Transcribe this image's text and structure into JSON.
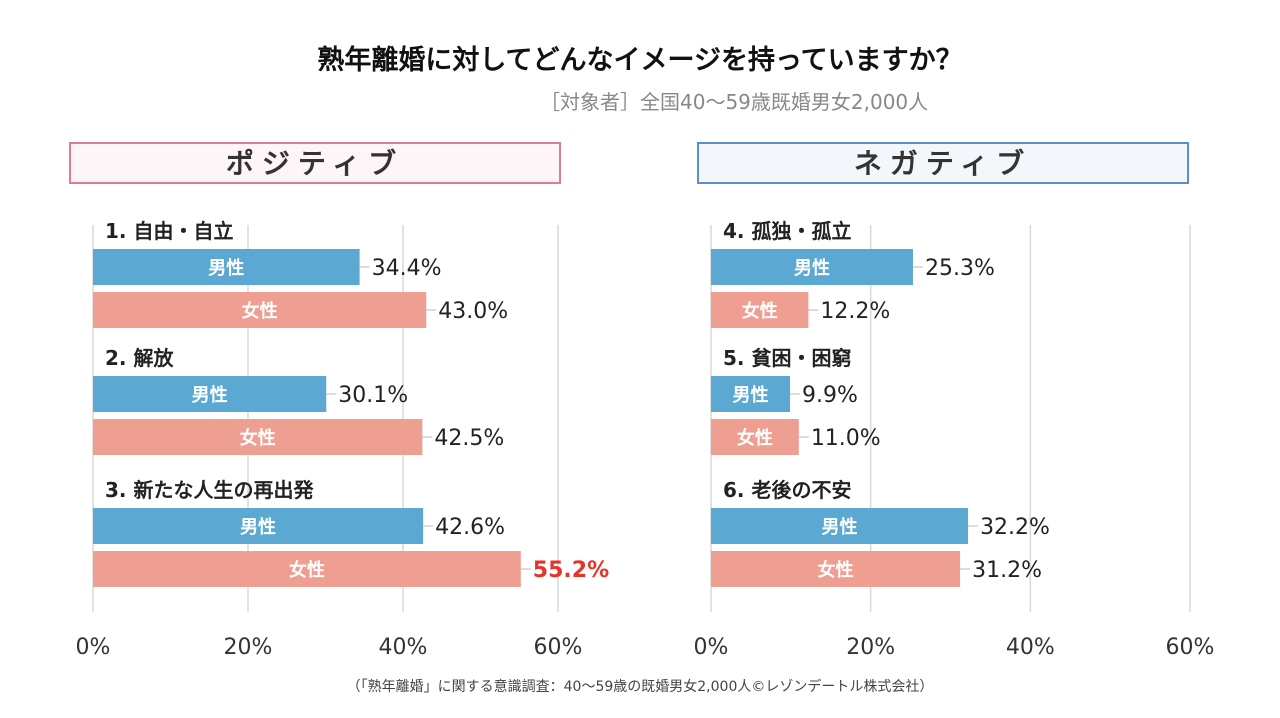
{
  "title": "熟年離婚に対してどんなイメージを持っていますか？",
  "subtitle": "［対象者］全国40～59歳既婚男女2,000人",
  "footer": "（「熟年離婚」に関する意識調査：40～59歳の既婚男女2,000人©レゾンデートル株式会社）",
  "colors": {
    "male": "#5ba8d2",
    "female": "#ee9f92",
    "highlight": "#e8332a",
    "positive_border": "#e07a9a",
    "negative_border": "#5b8fc9"
  },
  "chart_data": [
    {
      "type": "bar",
      "orientation": "horizontal",
      "panel_title": "ポジティブ",
      "xlim": [
        0,
        60
      ],
      "x_ticks": [
        "0%",
        "20%",
        "40%",
        "60%"
      ],
      "grid": true,
      "series_labels": [
        "男性",
        "女性"
      ],
      "groups": [
        {
          "label": "1. 自由・自立",
          "values": [
            34.4,
            43.0
          ],
          "value_labels": [
            "34.4%",
            "43.0%"
          ]
        },
        {
          "label": "2. 解放",
          "values": [
            30.1,
            42.5
          ],
          "value_labels": [
            "30.1%",
            "42.5%"
          ]
        },
        {
          "label": "3. 新たな人生の再出発",
          "values": [
            42.6,
            55.2
          ],
          "value_labels": [
            "42.6%",
            "55.2%"
          ],
          "highlight": 1
        }
      ]
    },
    {
      "type": "bar",
      "orientation": "horizontal",
      "panel_title": "ネガティブ",
      "xlim": [
        0,
        60
      ],
      "x_ticks": [
        "0%",
        "20%",
        "40%",
        "60%"
      ],
      "grid": true,
      "series_labels": [
        "男性",
        "女性"
      ],
      "groups": [
        {
          "label": "4. 孤独・孤立",
          "values": [
            25.3,
            12.2
          ],
          "value_labels": [
            "25.3%",
            "12.2%"
          ]
        },
        {
          "label": "5. 貧困・困窮",
          "values": [
            9.9,
            11.0
          ],
          "value_labels": [
            "9.9%",
            "11.0%"
          ]
        },
        {
          "label": "6. 老後の不安",
          "values": [
            32.2,
            31.2
          ],
          "value_labels": [
            "32.2%",
            "31.2%"
          ]
        }
      ]
    }
  ]
}
